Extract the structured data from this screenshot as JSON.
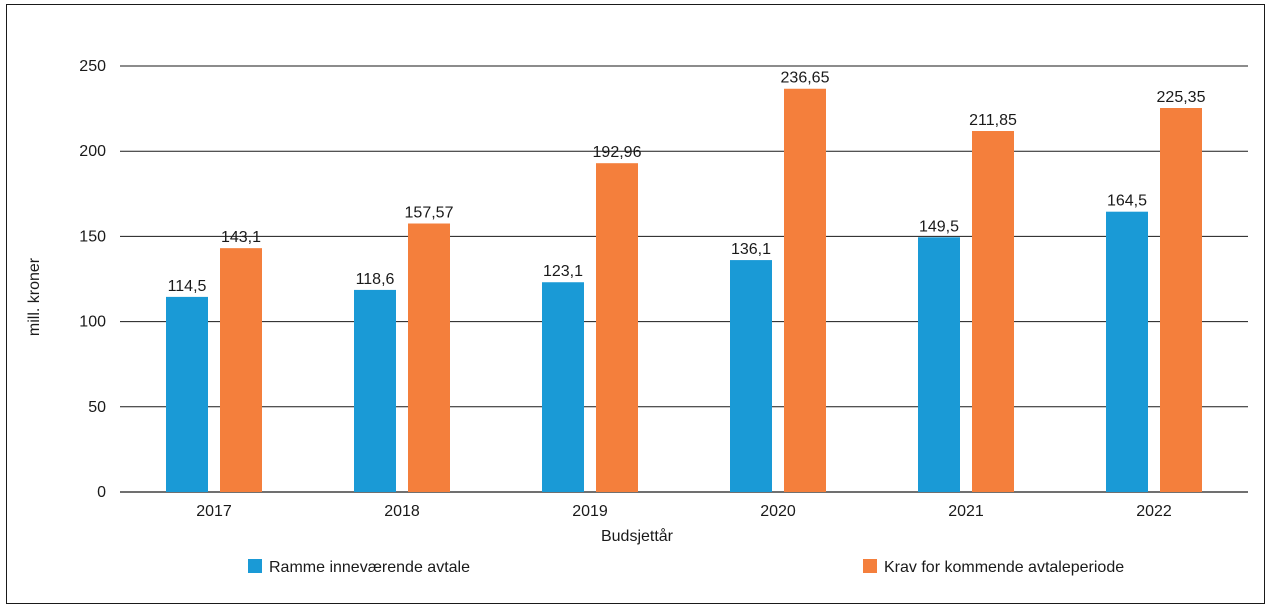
{
  "chart_data": {
    "type": "bar",
    "categories": [
      "2017",
      "2018",
      "2019",
      "2020",
      "2021",
      "2022"
    ],
    "series": [
      {
        "name": "Ramme inneværende avtale",
        "color": "#1a9ad6",
        "values": [
          114.5,
          118.6,
          123.1,
          136.1,
          149.5,
          164.5
        ],
        "labels": [
          "114,5",
          "118,6",
          "123,1",
          "136,1",
          "149,5",
          "164,5"
        ]
      },
      {
        "name": "Krav for kommende avtaleperiode",
        "color": "#f47f3c",
        "values": [
          143.1,
          157.57,
          192.96,
          236.65,
          211.85,
          225.35
        ],
        "labels": [
          "143,1",
          "157,57",
          "192,96",
          "236,65",
          "211,85",
          "225,35"
        ]
      }
    ],
    "xlabel": "Budsjettår",
    "ylabel": "mill. kroner",
    "ylim": [
      0,
      250
    ],
    "yticks": [
      "0",
      "50",
      "100",
      "150",
      "200",
      "250"
    ],
    "grid": true,
    "legend_position": "bottom"
  }
}
